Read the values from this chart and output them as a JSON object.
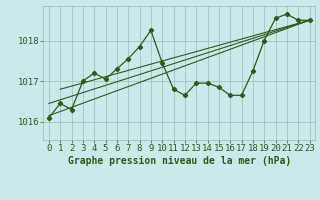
{
  "title": "Graphe pression niveau de la mer (hPa)",
  "bg_color": "#cce8eb",
  "plot_bg_color": "#cce8eb",
  "grid_color": "#99bbbb",
  "line_color": "#2d5a1b",
  "text_color": "#2d5a1b",
  "tick_fontsize": 6.5,
  "xlabel_fontsize": 7.0,
  "x_labels": [
    "0",
    "1",
    "2",
    "3",
    "4",
    "5",
    "6",
    "7",
    "8",
    "9",
    "10",
    "11",
    "12",
    "13",
    "14",
    "15",
    "16",
    "17",
    "18",
    "19",
    "20",
    "21",
    "22",
    "23"
  ],
  "yticks": [
    1016,
    1017,
    1018
  ],
  "ylim": [
    1015.55,
    1018.85
  ],
  "xlim": [
    -0.5,
    23.5
  ],
  "pressure_data": [
    1016.1,
    1016.45,
    1016.3,
    1017.0,
    1017.2,
    1017.05,
    1017.3,
    1017.55,
    1017.85,
    1018.25,
    1017.45,
    1016.8,
    1016.65,
    1016.95,
    1016.95,
    1016.85,
    1016.65,
    1016.65,
    1017.25,
    1018.0,
    1018.55,
    1018.65,
    1018.5,
    1018.5
  ],
  "trend1_x": [
    0,
    23
  ],
  "trend1_y": [
    1016.15,
    1018.5
  ],
  "trend2_x": [
    0,
    23
  ],
  "trend2_y": [
    1016.45,
    1018.5
  ],
  "trend3_x": [
    1,
    23
  ],
  "trend3_y": [
    1016.8,
    1018.5
  ]
}
